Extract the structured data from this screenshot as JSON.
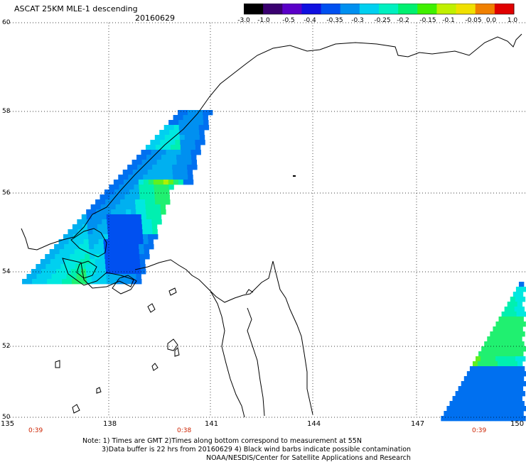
{
  "header": {
    "title": "ASCAT 25KM MLE-1 descending",
    "date": "20160629"
  },
  "colorbar": {
    "labels": [
      "-3.0",
      "-1.0",
      "-0.5",
      "-0.4",
      "-0.35",
      "-0.3",
      "-0.25",
      "-0.2",
      "-0.15",
      "-0.1",
      "-0.05",
      "0.0",
      "1.0"
    ],
    "colors": [
      "#000000",
      "#3a0070",
      "#5a00c8",
      "#1010e0",
      "#0050f0",
      "#0090f0",
      "#00d0f0",
      "#00f0c0",
      "#00f070",
      "#40f000",
      "#c0f000",
      "#f0e000",
      "#f08000",
      "#e00000"
    ]
  },
  "axes": {
    "lat_labels": [
      "60",
      "58",
      "56",
      "54",
      "52",
      "50"
    ],
    "lon_labels": [
      "135",
      "138",
      "141",
      "144",
      "147",
      "150"
    ]
  },
  "times": [
    "0:39",
    "0:38",
    "0:39"
  ],
  "notes": [
    "Note: 1) Times are GMT 2)Times along bottom correspond to measurement at 55N",
    "3)Data buffer is 22 hrs from 20160629 4) Black wind barbs indicate possible contamination",
    "NOAA/NESDIS/Center for Satellite Applications and Research"
  ]
}
